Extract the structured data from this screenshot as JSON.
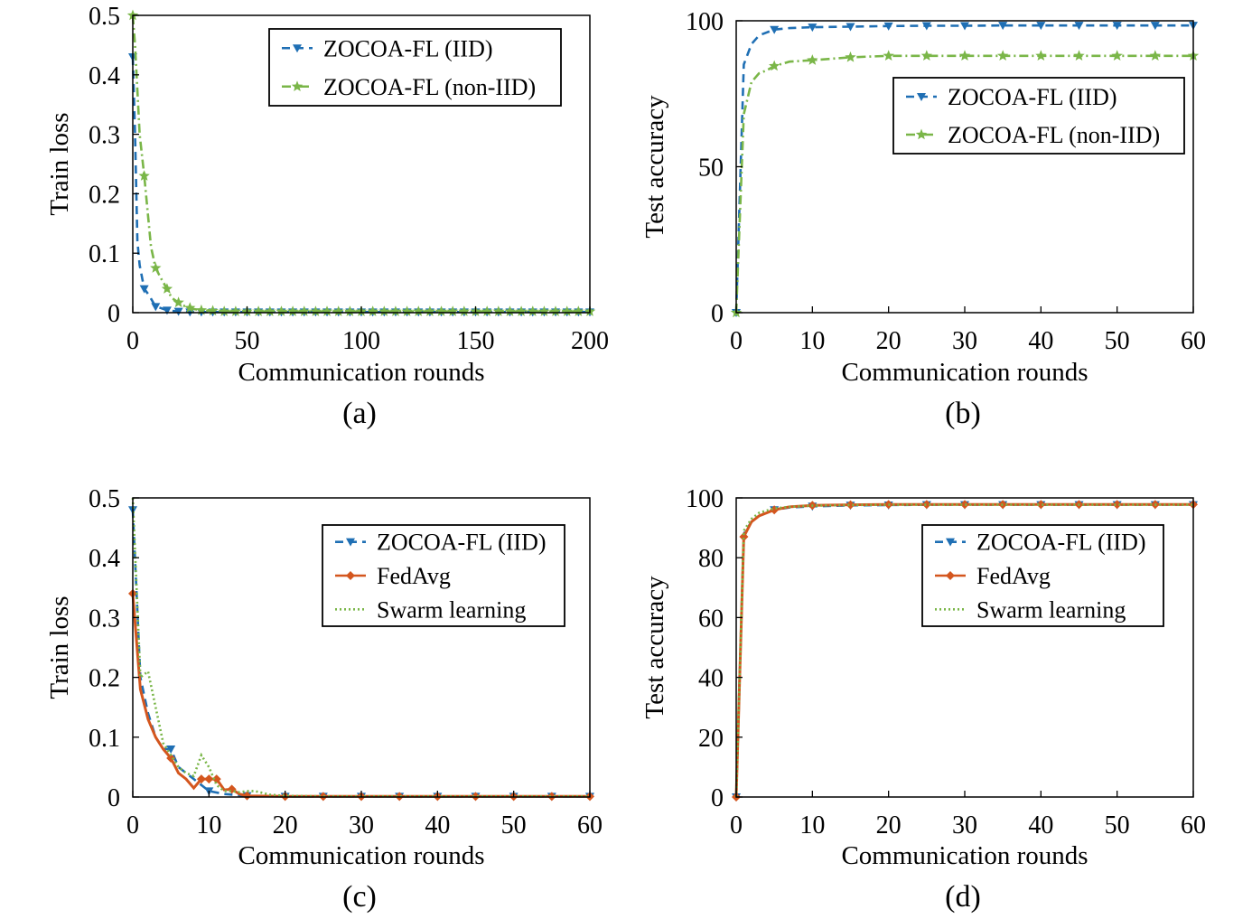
{
  "colors": {
    "blue": "#1f6fb4",
    "green": "#7ab648",
    "orange": "#d4561e"
  },
  "chart_data": [
    {
      "type": "line",
      "caption": "(a)",
      "xlabel": "Communication rounds",
      "ylabel": "Train loss",
      "xlim": [
        0,
        200
      ],
      "ylim": [
        0,
        0.5
      ],
      "xticks": [
        "0",
        "50",
        "100",
        "150",
        "200"
      ],
      "yticks": [
        "0",
        "0.1",
        "0.2",
        "0.3",
        "0.4",
        "0.5"
      ],
      "xtick_values": [
        0,
        50,
        100,
        150,
        200
      ],
      "ytick_values": [
        0,
        0.1,
        0.2,
        0.3,
        0.4,
        0.5
      ],
      "legend_position": "top-right",
      "grid": false,
      "series": [
        {
          "name": "ZOCOA-FL (IID)",
          "color": "#1f6fb4",
          "style": "dashed",
          "marker": "triangle-down",
          "x": [
            0,
            1,
            2,
            3,
            5,
            7,
            10,
            12,
            15,
            20,
            25,
            30,
            40,
            50,
            60,
            80,
            100,
            120,
            140,
            160,
            180,
            200
          ],
          "y": [
            0.43,
            0.3,
            0.12,
            0.08,
            0.04,
            0.03,
            0.01,
            0.008,
            0.004,
            0.002,
            0.001,
            0.001,
            0.001,
            0.001,
            0.001,
            0.001,
            0.001,
            0.001,
            0.001,
            0.001,
            0.001,
            0.001
          ],
          "marker_every": 5
        },
        {
          "name": "ZOCOA-FL (non-IID)",
          "color": "#7ab648",
          "style": "dashdot",
          "marker": "star",
          "x": [
            0,
            1,
            3,
            5,
            7,
            8,
            10,
            12,
            15,
            17,
            20,
            22,
            25,
            27,
            30,
            35,
            40,
            50,
            60,
            80,
            100,
            120,
            140,
            160,
            180,
            200
          ],
          "y": [
            0.5,
            0.45,
            0.3,
            0.23,
            0.15,
            0.11,
            0.075,
            0.06,
            0.04,
            0.025,
            0.017,
            0.012,
            0.008,
            0.006,
            0.004,
            0.003,
            0.002,
            0.002,
            0.002,
            0.002,
            0.002,
            0.002,
            0.002,
            0.002,
            0.002,
            0.002
          ],
          "marker_every": 5
        }
      ]
    },
    {
      "type": "line",
      "caption": "(b)",
      "xlabel": "Communication rounds",
      "ylabel": "Test accuracy",
      "xlim": [
        0,
        60
      ],
      "ylim": [
        0,
        100
      ],
      "xticks": [
        "0",
        "10",
        "20",
        "30",
        "40",
        "50",
        "60"
      ],
      "yticks": [
        "0",
        "50",
        "100"
      ],
      "xtick_values": [
        0,
        10,
        20,
        30,
        40,
        50,
        60
      ],
      "ytick_values": [
        0,
        50,
        100
      ],
      "legend_position": "center-right",
      "grid": false,
      "series": [
        {
          "name": "ZOCOA-FL (IID)",
          "color": "#1f6fb4",
          "style": "dashed",
          "marker": "triangle-down",
          "x": [
            0,
            1,
            2,
            3,
            4,
            5,
            7,
            10,
            15,
            20,
            25,
            30,
            35,
            40,
            45,
            50,
            55,
            60
          ],
          "y": [
            0,
            85,
            92,
            95,
            96,
            97,
            97.5,
            97.8,
            98,
            98.2,
            98.3,
            98.3,
            98.4,
            98.4,
            98.4,
            98.4,
            98.4,
            98.4
          ],
          "marker_x": [
            0,
            5,
            10,
            15,
            20,
            25,
            30,
            35,
            40,
            45,
            50,
            55,
            60
          ]
        },
        {
          "name": "ZOCOA-FL (non-IID)",
          "color": "#7ab648",
          "style": "dashdot",
          "marker": "star",
          "x": [
            0,
            1,
            2,
            3,
            4,
            5,
            7,
            10,
            15,
            20,
            25,
            30,
            35,
            40,
            45,
            50,
            55,
            60
          ],
          "y": [
            0,
            68,
            79,
            82,
            83,
            84.5,
            86,
            86.5,
            87.5,
            88,
            88,
            88,
            88,
            88,
            88,
            88,
            88,
            88
          ],
          "marker_x": [
            0,
            5,
            10,
            15,
            20,
            25,
            30,
            35,
            40,
            45,
            50,
            55,
            60
          ]
        }
      ]
    },
    {
      "type": "line",
      "caption": "(c)",
      "xlabel": "Communication rounds",
      "ylabel": "Train loss",
      "xlim": [
        0,
        60
      ],
      "ylim": [
        0,
        0.5
      ],
      "xticks": [
        "0",
        "10",
        "20",
        "30",
        "40",
        "50",
        "60"
      ],
      "yticks": [
        "0",
        "0.1",
        "0.2",
        "0.3",
        "0.4",
        "0.5"
      ],
      "xtick_values": [
        0,
        10,
        20,
        30,
        40,
        50,
        60
      ],
      "ytick_values": [
        0,
        0.1,
        0.2,
        0.3,
        0.4,
        0.5
      ],
      "legend_position": "top-right",
      "grid": false,
      "series": [
        {
          "name": "ZOCOA-FL (IID)",
          "color": "#1f6fb4",
          "style": "dashed",
          "marker": "triangle-down",
          "x": [
            0,
            1,
            2,
            3,
            4,
            5,
            6,
            7,
            8,
            10,
            12,
            15,
            20,
            25,
            30,
            35,
            40,
            45,
            50,
            55,
            60
          ],
          "y": [
            0.48,
            0.2,
            0.14,
            0.1,
            0.08,
            0.08,
            0.05,
            0.04,
            0.03,
            0.01,
            0.005,
            0.002,
            0.001,
            0.001,
            0.001,
            0.001,
            0.001,
            0.001,
            0.001,
            0.001,
            0.001
          ],
          "marker_x": [
            0,
            5,
            10,
            15,
            20,
            25,
            30,
            35,
            40,
            45,
            50,
            55,
            60
          ]
        },
        {
          "name": "FedAvg",
          "color": "#d4561e",
          "style": "solid",
          "marker": "plus",
          "x": [
            0,
            1,
            2,
            3,
            4,
            5,
            6,
            7,
            8,
            9,
            10,
            11,
            12,
            13,
            14,
            15,
            20,
            25,
            30,
            35,
            40,
            45,
            50,
            55,
            60
          ],
          "y": [
            0.34,
            0.18,
            0.13,
            0.1,
            0.08,
            0.065,
            0.04,
            0.03,
            0.015,
            0.03,
            0.03,
            0.03,
            0.012,
            0.013,
            0.005,
            0.002,
            0.001,
            0.001,
            0.001,
            0.001,
            0.001,
            0.001,
            0.001,
            0.001,
            0.001
          ],
          "marker_x": [
            0,
            5,
            9,
            10,
            11,
            13,
            15,
            20,
            25,
            30,
            35,
            40,
            45,
            50,
            55,
            60
          ]
        },
        {
          "name": "Swarm learning",
          "color": "#7ab648",
          "style": "dotted",
          "marker": "none",
          "x": [
            0,
            1,
            2,
            3,
            4,
            5,
            6,
            7,
            8,
            9,
            10,
            11,
            12,
            13,
            14,
            15,
            16,
            18,
            20,
            25,
            30,
            40,
            50,
            60
          ],
          "y": [
            0.5,
            0.2,
            0.21,
            0.15,
            0.09,
            0.07,
            0.05,
            0.04,
            0.035,
            0.07,
            0.05,
            0.02,
            0.01,
            0.01,
            0.008,
            0.01,
            0.01,
            0.004,
            0.002,
            0.001,
            0.001,
            0.001,
            0.001,
            0.001
          ]
        }
      ]
    },
    {
      "type": "line",
      "caption": "(d)",
      "xlabel": "Communication rounds",
      "ylabel": "Test accuracy",
      "xlim": [
        0,
        60
      ],
      "ylim": [
        0,
        100
      ],
      "xticks": [
        "0",
        "10",
        "20",
        "30",
        "40",
        "50",
        "60"
      ],
      "yticks": [
        "0",
        "20",
        "40",
        "60",
        "80",
        "100"
      ],
      "xtick_values": [
        0,
        10,
        20,
        30,
        40,
        50,
        60
      ],
      "ytick_values": [
        0,
        20,
        40,
        60,
        80,
        100
      ],
      "legend_position": "top-right",
      "grid": false,
      "series": [
        {
          "name": "ZOCOA-FL (IID)",
          "color": "#1f6fb4",
          "style": "dashed",
          "marker": "triangle-down",
          "x": [
            0,
            1,
            2,
            3,
            5,
            7,
            10,
            15,
            20,
            25,
            30,
            35,
            40,
            45,
            50,
            55,
            60
          ],
          "y": [
            0,
            88,
            92,
            94,
            96,
            96.8,
            97.2,
            97.5,
            97.6,
            97.7,
            97.7,
            97.7,
            97.7,
            97.7,
            97.7,
            97.7,
            97.7
          ],
          "marker_x": [
            0,
            5,
            10,
            15,
            20,
            25,
            30,
            35,
            40,
            45,
            50,
            55,
            60
          ]
        },
        {
          "name": "FedAvg",
          "color": "#d4561e",
          "style": "solid",
          "marker": "plus",
          "x": [
            0,
            1,
            2,
            3,
            5,
            7,
            10,
            15,
            20,
            25,
            30,
            35,
            40,
            45,
            50,
            55,
            60
          ],
          "y": [
            0,
            87,
            92,
            94,
            96,
            97,
            97.5,
            97.7,
            97.8,
            97.8,
            97.8,
            97.8,
            97.8,
            97.8,
            97.8,
            97.8,
            97.8
          ],
          "marker_x": [
            0,
            1,
            5,
            10,
            15,
            20,
            25,
            30,
            35,
            40,
            45,
            50,
            55,
            60
          ]
        },
        {
          "name": "Swarm learning",
          "color": "#7ab648",
          "style": "dotted",
          "marker": "none",
          "x": [
            0,
            1,
            2,
            3,
            5,
            7,
            10,
            15,
            20,
            25,
            30,
            35,
            40,
            45,
            50,
            55,
            60
          ],
          "y": [
            0,
            89,
            93,
            95,
            96.5,
            97,
            97.4,
            97.6,
            97.7,
            97.7,
            97.7,
            97.7,
            97.7,
            97.7,
            97.7,
            97.7,
            97.7
          ]
        }
      ]
    }
  ]
}
